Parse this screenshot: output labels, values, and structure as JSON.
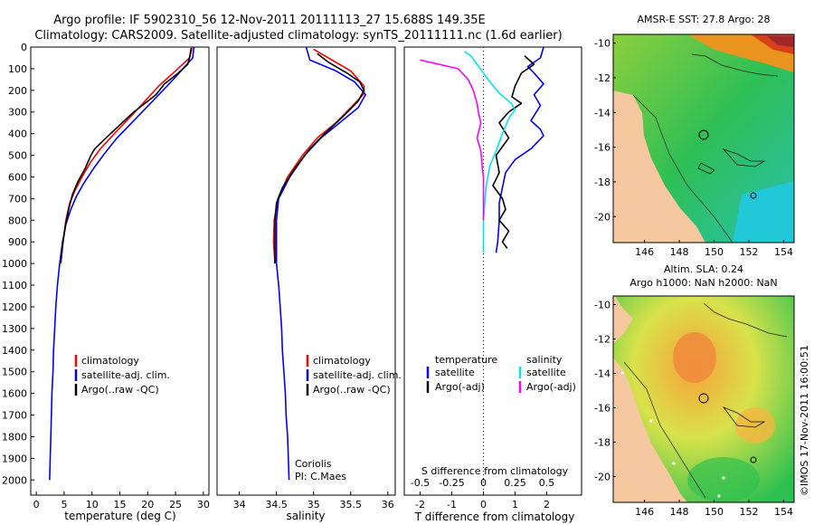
{
  "header": {
    "line1": "Argo profile: IF 5902310_56 12-Nov-2011 20111113_27 15.688S 149.35E",
    "line2": "Climatology: CARS2009. Satellite-adjusted climatology: synTS_20111111.nc (1.6d earlier)"
  },
  "colors": {
    "climatology": "#ff0000",
    "satellite": "#0000ff",
    "argo": "#000000",
    "argo_adj_s": "#ff00ff",
    "sat_s": "#00e5ee",
    "land": "#f5c8a0"
  },
  "depth_axis": {
    "ticks": [
      "0",
      "100",
      "200",
      "300",
      "400",
      "500",
      "600",
      "700",
      "800",
      "900",
      "1000",
      "1100",
      "1200",
      "1300",
      "1400",
      "1500",
      "1600",
      "1700",
      "1800",
      "1900",
      "2000"
    ]
  },
  "chart_data": [
    {
      "type": "line",
      "name": "temperature",
      "xlabel": "temperature (deg C)",
      "xlim": [
        -1,
        31
      ],
      "ylim": [
        0,
        2070
      ],
      "xticks": [
        "0",
        "5",
        "10",
        "15",
        "20",
        "25",
        "30"
      ],
      "legend": [
        {
          "label": "climatology",
          "color": "#ff0000"
        },
        {
          "label": "satellite-adj. clim.",
          "color": "#0000ff"
        },
        {
          "label": "Argo(..raw -QC)",
          "color": "#000000"
        }
      ],
      "series": [
        {
          "name": "climatology",
          "color": "#ff0000",
          "points": [
            [
              28,
              0
            ],
            [
              27.5,
              50
            ],
            [
              25,
              110
            ],
            [
              22,
              180
            ],
            [
              19.5,
              250
            ],
            [
              17,
              320
            ],
            [
              14,
              400
            ],
            [
              11.5,
              470
            ],
            [
              9.8,
              530
            ],
            [
              8.2,
              600
            ],
            [
              7,
              660
            ],
            [
              6,
              720
            ],
            [
              5.3,
              800
            ],
            [
              4.8,
              900
            ],
            [
              4.3,
              1000
            ]
          ]
        },
        {
          "name": "satellite-adj. clim.",
          "color": "#0000ff",
          "points": [
            [
              28.3,
              0
            ],
            [
              28.1,
              50
            ],
            [
              26,
              110
            ],
            [
              23.5,
              180
            ],
            [
              20.5,
              260
            ],
            [
              17.5,
              340
            ],
            [
              14.5,
              420
            ],
            [
              12.3,
              490
            ],
            [
              10.3,
              560
            ],
            [
              8.5,
              630
            ],
            [
              7.2,
              690
            ],
            [
              6.2,
              750
            ],
            [
              5.3,
              820
            ],
            [
              4.7,
              900
            ],
            [
              4.2,
              1000
            ],
            [
              3.8,
              1100
            ],
            [
              3.5,
              1200
            ],
            [
              3.3,
              1300
            ],
            [
              3.1,
              1400
            ],
            [
              3,
              1500
            ],
            [
              2.8,
              1600
            ],
            [
              2.7,
              1700
            ],
            [
              2.6,
              1800
            ],
            [
              2.5,
              1900
            ],
            [
              2.4,
              2000
            ]
          ]
        },
        {
          "name": "Argo",
          "color": "#000000",
          "points": [
            [
              27.8,
              5
            ],
            [
              27.6,
              40
            ],
            [
              27.2,
              80
            ],
            [
              25.5,
              120
            ],
            [
              23,
              170
            ],
            [
              21.5,
              220
            ],
            [
              19.5,
              260
            ],
            [
              17.5,
              300
            ],
            [
              15,
              360
            ],
            [
              12.5,
              420
            ],
            [
              10.5,
              470
            ],
            [
              9.8,
              500
            ],
            [
              8.8,
              560
            ],
            [
              7.5,
              620
            ],
            [
              6.5,
              680
            ],
            [
              5.8,
              750
            ],
            [
              5.2,
              830
            ],
            [
              4.8,
              900
            ],
            [
              4.4,
              1000
            ]
          ]
        }
      ]
    },
    {
      "type": "line",
      "name": "salinity",
      "xlabel": "salinity",
      "xlim": [
        33.7,
        36.1
      ],
      "ylim": [
        0,
        2070
      ],
      "xticks": [
        "34",
        "34.5",
        "35",
        "35.5",
        "36"
      ],
      "legend": [
        {
          "label": "climatology",
          "color": "#ff0000"
        },
        {
          "label": "satellite-adj. clim.",
          "color": "#0000ff"
        },
        {
          "label": "Argo(..raw -QC)",
          "color": "#000000"
        }
      ],
      "annotation": [
        "Coriolis",
        "PI: C.Maes"
      ],
      "series": [
        {
          "name": "climatology",
          "color": "#ff0000",
          "points": [
            [
              35.0,
              10
            ],
            [
              35.2,
              50
            ],
            [
              35.5,
              110
            ],
            [
              35.68,
              180
            ],
            [
              35.68,
              215
            ],
            [
              35.5,
              280
            ],
            [
              35.3,
              350
            ],
            [
              35.05,
              420
            ],
            [
              34.85,
              500
            ],
            [
              34.65,
              600
            ],
            [
              34.52,
              700
            ],
            [
              34.47,
              800
            ],
            [
              34.46,
              900
            ],
            [
              34.48,
              1000
            ]
          ]
        },
        {
          "name": "satellite-adj. clim.",
          "color": "#0000ff",
          "points": [
            [
              34.9,
              0
            ],
            [
              34.95,
              60
            ],
            [
              35.3,
              110
            ],
            [
              35.55,
              160
            ],
            [
              35.7,
              220
            ],
            [
              35.6,
              280
            ],
            [
              35.35,
              350
            ],
            [
              35.1,
              420
            ],
            [
              34.88,
              500
            ],
            [
              34.68,
              600
            ],
            [
              34.53,
              700
            ],
            [
              34.5,
              800
            ],
            [
              34.5,
              900
            ],
            [
              34.5,
              1000
            ],
            [
              34.53,
              1100
            ],
            [
              34.55,
              1200
            ],
            [
              34.57,
              1300
            ],
            [
              34.58,
              1400
            ],
            [
              34.6,
              1500
            ],
            [
              34.62,
              1600
            ],
            [
              34.63,
              1700
            ],
            [
              34.65,
              1800
            ],
            [
              34.66,
              1900
            ],
            [
              34.67,
              2000
            ]
          ]
        },
        {
          "name": "Argo",
          "color": "#000000",
          "points": [
            [
              35.05,
              30
            ],
            [
              35.2,
              70
            ],
            [
              35.45,
              120
            ],
            [
              35.62,
              160
            ],
            [
              35.68,
              200
            ],
            [
              35.6,
              250
            ],
            [
              35.4,
              320
            ],
            [
              35.15,
              400
            ],
            [
              34.95,
              470
            ],
            [
              34.75,
              560
            ],
            [
              34.58,
              650
            ],
            [
              34.5,
              720
            ],
            [
              34.48,
              800
            ],
            [
              34.48,
              900
            ],
            [
              34.48,
              1000
            ]
          ]
        }
      ]
    },
    {
      "type": "line",
      "name": "difference",
      "xlabel": "T difference from climatology",
      "top_label": "S difference from climatology",
      "xlim": [
        -2.5,
        3.1
      ],
      "ylim": [
        0,
        2070
      ],
      "xticks": [
        "-2",
        "-1",
        "0",
        "1",
        "2"
      ],
      "top_ticks": [
        "-0.5",
        "-0.25",
        "0",
        "0.25",
        "0.5"
      ],
      "legend": [
        {
          "label": "temperature",
          "color": ""
        },
        {
          "label": "satellite",
          "color": "#0000ff"
        },
        {
          "label": "Argo(-adj)",
          "color": "#000000"
        },
        {
          "label": "salinity",
          "color": ""
        },
        {
          "label": "satellite",
          "color": "#00e5ee"
        },
        {
          "label": "Argo(-adj)",
          "color": "#ff00ff"
        }
      ],
      "series": [
        {
          "name": "T satellite",
          "color": "#0000ff",
          "points": [
            [
              1.9,
              0
            ],
            [
              1.8,
              50
            ],
            [
              1.4,
              90
            ],
            [
              1.6,
              120
            ],
            [
              1.9,
              170
            ],
            [
              1.6,
              220
            ],
            [
              1.8,
              270
            ],
            [
              1.5,
              340
            ],
            [
              1.8,
              380
            ],
            [
              1.9,
              410
            ],
            [
              1.5,
              470
            ],
            [
              1.0,
              520
            ],
            [
              0.7,
              580
            ],
            [
              0.6,
              650
            ],
            [
              0.5,
              720
            ],
            [
              0.5,
              800
            ],
            [
              0.45,
              900
            ],
            [
              0.4,
              950
            ]
          ]
        },
        {
          "name": "T Argo",
          "color": "#000000",
          "points": [
            [
              1.3,
              40
            ],
            [
              1.6,
              80
            ],
            [
              1.2,
              120
            ],
            [
              1.0,
              180
            ],
            [
              0.9,
              230
            ],
            [
              1.2,
              260
            ],
            [
              0.8,
              300
            ],
            [
              0.5,
              350
            ],
            [
              0.8,
              420
            ],
            [
              0.4,
              500
            ],
            [
              0.5,
              580
            ],
            [
              0.3,
              640
            ],
            [
              0.6,
              700
            ],
            [
              0.7,
              750
            ],
            [
              0.5,
              800
            ],
            [
              0.8,
              850
            ],
            [
              0.6,
              900
            ],
            [
              0.75,
              930
            ]
          ]
        },
        {
          "name": "S satellite",
          "color": "#00e5ee",
          "points": [
            [
              -0.15,
              20
            ],
            [
              -0.1,
              40
            ],
            [
              -0.05,
              80
            ],
            [
              0.0,
              120
            ],
            [
              0.05,
              160
            ],
            [
              0.12,
              210
            ],
            [
              0.22,
              260
            ],
            [
              0.25,
              290
            ],
            [
              0.2,
              330
            ],
            [
              0.15,
              400
            ],
            [
              0.1,
              480
            ],
            [
              0.05,
              550
            ],
            [
              0.02,
              650
            ],
            [
              0.0,
              800
            ],
            [
              0.0,
              950
            ]
          ]
        },
        {
          "name": "S Argo",
          "color": "#ff00ff",
          "points": [
            [
              -0.5,
              60
            ],
            [
              -0.2,
              100
            ],
            [
              -0.12,
              150
            ],
            [
              -0.08,
              200
            ],
            [
              -0.05,
              260
            ],
            [
              -0.04,
              300
            ],
            [
              -0.02,
              350
            ],
            [
              -0.05,
              420
            ],
            [
              -0.02,
              480
            ],
            [
              -0.01,
              550
            ],
            [
              0.0,
              600
            ],
            [
              0.0,
              700
            ],
            [
              0.0,
              800
            ]
          ]
        }
      ]
    }
  ],
  "map1": {
    "title": "AMSR-E SST: 27.8  Argo: 28",
    "yticks": [
      "-10",
      "-12",
      "-14",
      "-16",
      "-18",
      "-20"
    ],
    "xticks": [
      "146",
      "148",
      "150",
      "152",
      "154"
    ]
  },
  "map2": {
    "title1": "Altim. SLA: 0.24",
    "title2": "Argo h1000: NaN h2000: NaN",
    "yticks": [
      "-10",
      "-12",
      "-14",
      "-16",
      "-18",
      "-20"
    ],
    "xticks": [
      "146",
      "148",
      "150",
      "152",
      "154"
    ]
  },
  "footer": {
    "credit": "©IMOS 17-Nov-2011 16:00:51"
  }
}
